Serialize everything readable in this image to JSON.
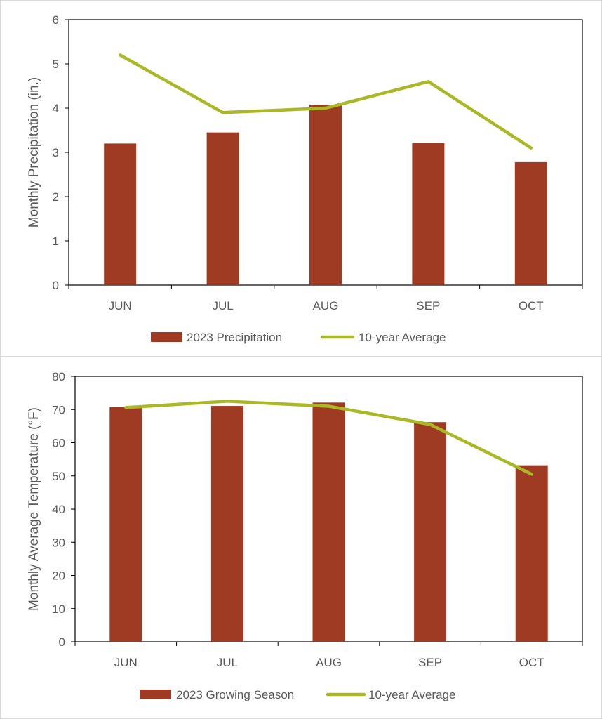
{
  "chart_data": [
    {
      "type": "bar+line",
      "categories": [
        "JUN",
        "JUL",
        "AUG",
        "SEP",
        "OCT"
      ],
      "series": [
        {
          "name": "2023 Precipitation",
          "kind": "bar",
          "values": [
            3.2,
            3.45,
            4.08,
            3.21,
            2.78
          ]
        },
        {
          "name": "10-year Average",
          "kind": "line",
          "values": [
            5.2,
            3.9,
            4.0,
            4.6,
            3.1
          ]
        }
      ],
      "title": "",
      "xlabel": "",
      "ylabel": "Monthly Precipitation (in.)",
      "ylim": [
        0,
        6
      ],
      "yticks": [
        "0",
        "1",
        "2",
        "3",
        "4",
        "5",
        "6"
      ],
      "legend_position": "bottom",
      "grid": false
    },
    {
      "type": "bar+line",
      "categories": [
        "JUN",
        "JUL",
        "AUG",
        "SEP",
        "OCT"
      ],
      "series": [
        {
          "name": "2023 Growing Season",
          "kind": "bar",
          "values": [
            70.7,
            71.1,
            72.1,
            66.2,
            53.2
          ]
        },
        {
          "name": "10-year Average",
          "kind": "line",
          "values": [
            70.6,
            72.5,
            71.0,
            65.5,
            50.5
          ]
        }
      ],
      "title": "",
      "xlabel": "",
      "ylabel": "Monthly Average Temperature (°F)",
      "ylim": [
        0,
        80
      ],
      "yticks": [
        "0",
        "10",
        "20",
        "30",
        "40",
        "50",
        "60",
        "70",
        "80"
      ],
      "legend_position": "bottom",
      "grid": false
    }
  ],
  "colors": {
    "bar": "#9e3b22",
    "line": "#aab826",
    "axis": "#000000",
    "text": "#595959"
  }
}
